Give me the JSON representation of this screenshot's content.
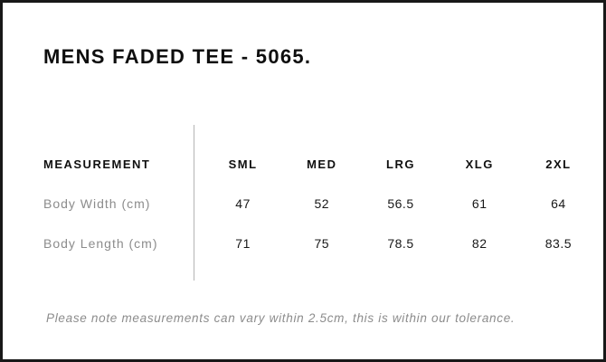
{
  "title": "MENS FADED TEE - 5065.",
  "table": {
    "measurement_header": "MEASUREMENT",
    "sizes": [
      "SML",
      "MED",
      "LRG",
      "XLG",
      "2XL"
    ],
    "rows": [
      {
        "label": "Body Width (cm)",
        "values": [
          "47",
          "52",
          "56.5",
          "61",
          "64"
        ]
      },
      {
        "label": "Body Length (cm)",
        "values": [
          "71",
          "75",
          "78.5",
          "82",
          "83.5"
        ]
      }
    ]
  },
  "footer_note": "Please note measurements can vary within 2.5cm, this is within our tolerance.",
  "colors": {
    "background": "#ffffff",
    "frame_border": "#181818",
    "heading_text": "#0e0e0e",
    "table_text": "#181818",
    "muted_text": "#8c8c8c",
    "divider": "#b5b5b5"
  }
}
